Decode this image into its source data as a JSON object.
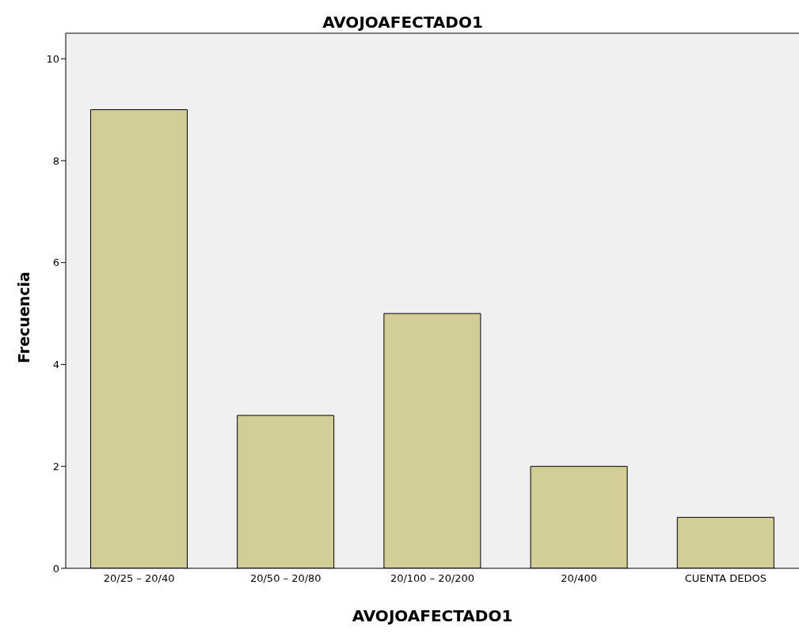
{
  "chart_data": {
    "type": "bar",
    "title": "AVOJOAFECTADO1",
    "xlabel": "AVOJOAFECTADO1",
    "ylabel": "Frecuencia",
    "categories": [
      "20/25 – 20/40",
      "20/50 – 20/80",
      "20/100 – 20/200",
      "20/400",
      "CUENTA DEDOS"
    ],
    "values": [
      9,
      3,
      5,
      2,
      1
    ],
    "color": "#d3ce97",
    "ylim": [
      0,
      10.5
    ],
    "yticks": [
      0,
      2,
      4,
      6,
      8,
      10
    ],
    "grid": false,
    "legend": false
  }
}
